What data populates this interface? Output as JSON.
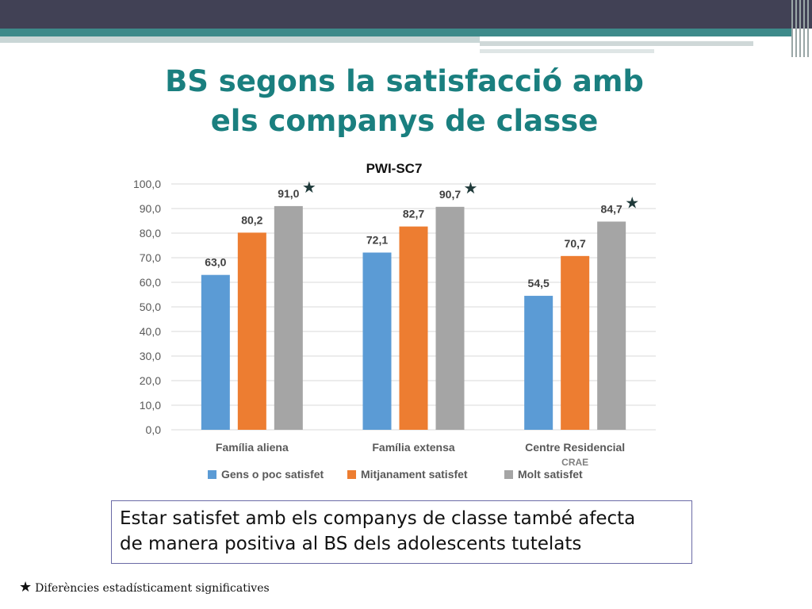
{
  "slide": {
    "title_line1": "BS segons la satisfacció amb",
    "title_line2": "els companys de classe",
    "note_line1": "Estar satisfet amb els companys de classe també afecta",
    "note_line2": "de manera positiva al BS dels adolescents tutelats",
    "footnote_star": "★",
    "footnote_text": "Diferències estadísticament significatives"
  },
  "chart_data": {
    "type": "bar",
    "title": "PWI-SC7",
    "categories": [
      "Família aliena",
      "Família extensa",
      "Centre Residencial"
    ],
    "category_sublabels": [
      "",
      "",
      "CRAE"
    ],
    "series": [
      {
        "name": "Gens o poc satisfet",
        "values": [
          63.0,
          72.1,
          54.5
        ],
        "labels": [
          "63,0",
          "72,1",
          "54,5"
        ],
        "color": "#5b9bd5"
      },
      {
        "name": "Mitjanament satisfet",
        "values": [
          80.2,
          82.7,
          70.7
        ],
        "labels": [
          "80,2",
          "82,7",
          "70,7"
        ],
        "color": "#ed7d31"
      },
      {
        "name": "Molt satisfet",
        "values": [
          91.0,
          90.7,
          84.7
        ],
        "labels": [
          "91,0",
          "90,7",
          "84,7"
        ],
        "color": "#a5a5a5"
      }
    ],
    "significance_marker": "★",
    "significant_categories": [
      0,
      1,
      2
    ],
    "ylim": [
      0,
      100
    ],
    "yticks": [
      "0,0",
      "10,0",
      "20,0",
      "30,0",
      "40,0",
      "50,0",
      "60,0",
      "70,0",
      "80,0",
      "90,0",
      "100,0"
    ],
    "grid": true,
    "legend_position": "bottom"
  }
}
